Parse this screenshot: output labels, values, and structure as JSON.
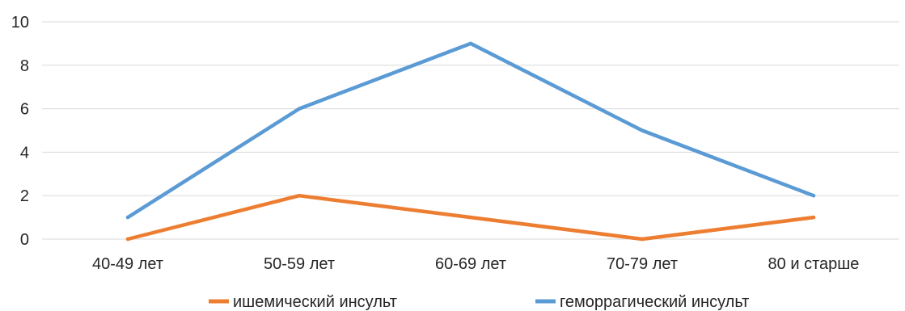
{
  "chart_data": {
    "type": "line",
    "categories": [
      "40-49 лет",
      "50-59 лет",
      "60-69 лет",
      "70-79 лет",
      "80 и старше"
    ],
    "series": [
      {
        "name": "ишемический инсульт",
        "values": [
          0,
          2,
          1,
          0,
          1
        ],
        "color": "#ED7D31"
      },
      {
        "name": "геморрагический инсульт",
        "values": [
          1,
          6,
          9,
          5,
          2
        ],
        "color": "#5B9BD5"
      }
    ],
    "ylim": [
      0,
      10
    ],
    "yticks": [
      0,
      2,
      4,
      6,
      8,
      10
    ],
    "grid": true,
    "legend_position": "bottom"
  }
}
